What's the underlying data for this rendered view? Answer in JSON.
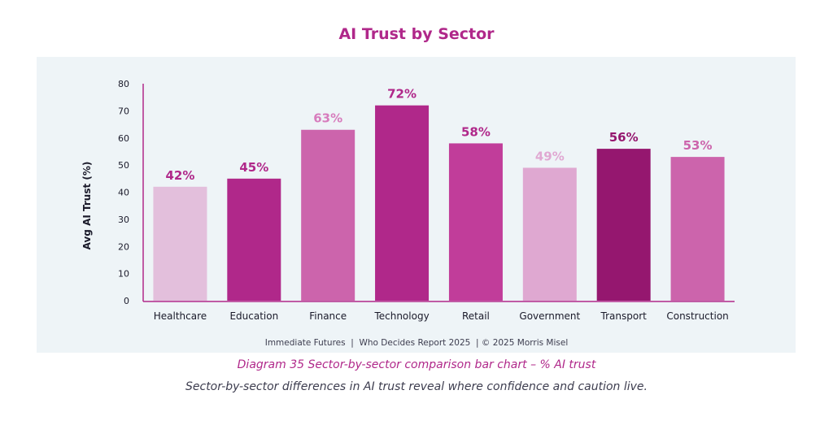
{
  "title": "AI Trust by Sector",
  "chart_data": {
    "type": "bar",
    "title": "AI Trust by Sector",
    "xlabel": "",
    "ylabel": "Avg AI Trust (%)",
    "ylim": [
      0,
      80
    ],
    "yticks": [
      0,
      10,
      20,
      30,
      40,
      50,
      60,
      70,
      80
    ],
    "categories": [
      "Healthcare",
      "Education",
      "Finance",
      "Technology",
      "Retail",
      "Government",
      "Transport",
      "Construction"
    ],
    "values": [
      42,
      45,
      63,
      72,
      58,
      49,
      56,
      53
    ],
    "data_labels": [
      "42%",
      "45%",
      "63%",
      "72%",
      "58%",
      "49%",
      "56%",
      "53%"
    ],
    "bar_colors": [
      "#e3bfdc",
      "#b0288a",
      "#cc64ac",
      "#b0288a",
      "#c13d9a",
      "#dfa8d1",
      "#95176f",
      "#cc64ac"
    ],
    "label_colors": [
      "#b0288a",
      "#b0288a",
      "#d77cbd",
      "#b0288a",
      "#b0288a",
      "#e0a8d2",
      "#95176f",
      "#cc64ac"
    ],
    "grid": false,
    "axis_color": "#b0288a"
  },
  "footer": "Immediate Futures  |  Who Decides Report 2025  | © 2025 Morris Misel",
  "caption": "Diagram 35 Sector-by-sector comparison bar chart – % AI trust",
  "subcaption": "Sector-by-sector differences in AI trust reveal where confidence and caution live."
}
